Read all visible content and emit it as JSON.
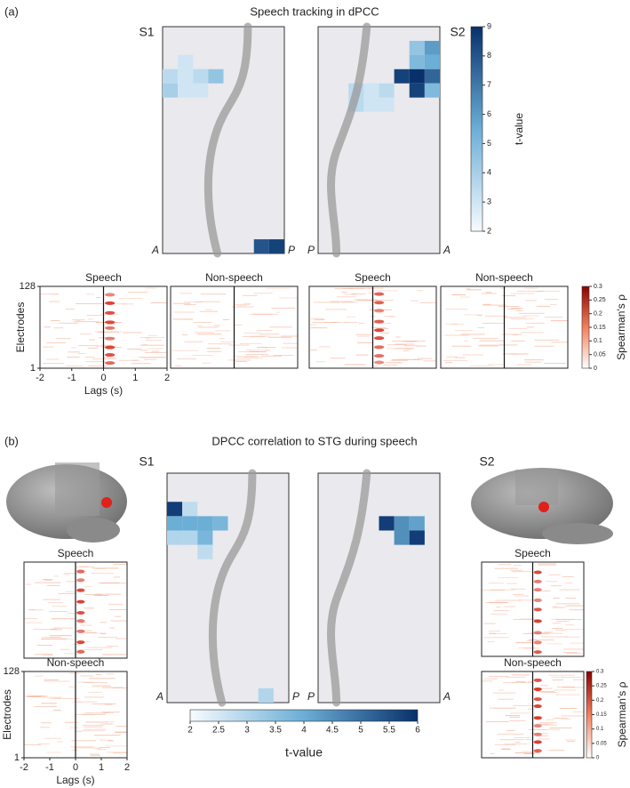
{
  "panel_a": {
    "label": "(a)",
    "title": "Speech tracking in dPCC",
    "grids": [
      {
        "subject": "S1",
        "left": "A",
        "right": "P",
        "cells": [
          [
            2,
            1,
            3
          ],
          [
            3,
            0,
            3.5
          ],
          [
            3,
            1,
            3
          ],
          [
            3,
            2,
            3.5
          ],
          [
            3,
            3,
            4.5
          ],
          [
            4,
            0,
            4
          ],
          [
            4,
            1,
            3
          ],
          [
            4,
            2,
            3
          ],
          [
            15,
            6,
            8
          ],
          [
            15,
            7,
            8.5
          ]
        ]
      },
      {
        "subject": "S2",
        "left": "P",
        "right": "A",
        "cells": [
          [
            1,
            6,
            4.5
          ],
          [
            1,
            7,
            6
          ],
          [
            2,
            6,
            5
          ],
          [
            2,
            7,
            5.5
          ],
          [
            3,
            5,
            8.5
          ],
          [
            3,
            6,
            9
          ],
          [
            3,
            7,
            7.5
          ],
          [
            4,
            6,
            8.5
          ],
          [
            4,
            7,
            5
          ],
          [
            4,
            2,
            3.5
          ],
          [
            4,
            3,
            3
          ],
          [
            4,
            4,
            3.5
          ],
          [
            5,
            2,
            3.5
          ],
          [
            5,
            3,
            3
          ],
          [
            5,
            4,
            3
          ]
        ]
      }
    ],
    "tcolorbar": {
      "label": "t-value",
      "lim": [
        2,
        9
      ],
      "ticks": [
        2,
        3,
        4,
        5,
        6,
        7,
        8,
        9
      ]
    },
    "rasters": {
      "titles": [
        "Speech",
        "Non-speech",
        "Speech",
        "Non-speech"
      ],
      "ylabel": "Electrodes",
      "ylim": [
        1,
        128
      ],
      "yticks": [
        1,
        128
      ],
      "xlabel": "Lags (s)",
      "xlim": [
        -2,
        2
      ],
      "xticks": [
        -2,
        -1,
        0,
        1,
        2
      ]
    },
    "rho_colorbar": {
      "label": "Spearman's ρ",
      "lim": [
        0,
        0.3
      ],
      "ticks": [
        0,
        0.05,
        0.1,
        0.15,
        0.2,
        0.25,
        0.3
      ]
    }
  },
  "panel_b": {
    "label": "(b)",
    "title": "DPCC correlation to STG during speech",
    "grids": [
      {
        "subject": "S1",
        "left": "A",
        "right": "P",
        "cells": [
          [
            2,
            0,
            5.8
          ],
          [
            2,
            1,
            2.8
          ],
          [
            3,
            0,
            4
          ],
          [
            3,
            1,
            4
          ],
          [
            3,
            2,
            4
          ],
          [
            3,
            3,
            3.8
          ],
          [
            4,
            0,
            3
          ],
          [
            4,
            1,
            3
          ],
          [
            4,
            2,
            3.8
          ],
          [
            5,
            2,
            2.8
          ],
          [
            15,
            6,
            3
          ]
        ]
      },
      {
        "subject": "S2",
        "left": "P",
        "right": "A",
        "cells": [
          [
            3,
            4,
            5.8
          ],
          [
            3,
            5,
            4.5
          ],
          [
            3,
            6,
            4.2
          ],
          [
            4,
            5,
            4.5
          ],
          [
            4,
            6,
            5.8
          ]
        ]
      }
    ],
    "tcolorbar": {
      "label": "t-value",
      "lim": [
        2,
        6
      ],
      "ticks": [
        2,
        2.5,
        3,
        3.5,
        4,
        4.5,
        5,
        5.5,
        6
      ]
    },
    "left_rasters": {
      "titles": [
        "Speech",
        "Non-speech"
      ],
      "ylabel": "Electrodes",
      "ylim": [
        1,
        128
      ],
      "yticks": [
        1,
        128
      ],
      "xlabel": "Lags (s)",
      "xlim": [
        -2,
        2
      ],
      "xticks": [
        -2,
        -1,
        0,
        1,
        2
      ]
    },
    "right_rasters": {
      "titles": [
        "Speech",
        "Non-speech"
      ]
    },
    "rho_colorbar": {
      "label": "Spearman's ρ",
      "lim": [
        0,
        0.3
      ],
      "ticks": [
        0,
        0.05,
        0.1,
        0.15,
        0.2,
        0.25,
        0.3
      ]
    }
  }
}
